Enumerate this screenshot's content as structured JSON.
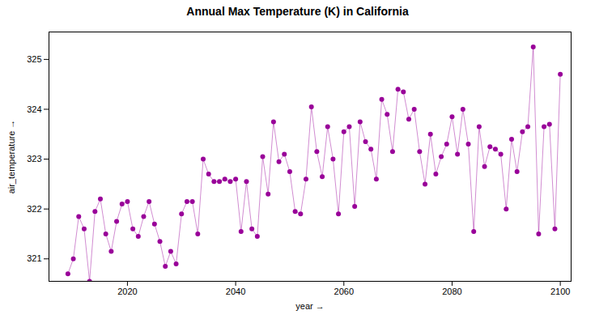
{
  "chart_data": {
    "type": "line",
    "title": "Annual Max Temperature (K) in California",
    "xlabel": "year",
    "ylabel": "air_temperature",
    "color": "#990099",
    "marker": "o",
    "grid": false,
    "x": [
      2009,
      2010,
      2011,
      2012,
      2013,
      2014,
      2015,
      2016,
      2017,
      2018,
      2019,
      2020,
      2021,
      2022,
      2023,
      2024,
      2025,
      2026,
      2027,
      2028,
      2029,
      2030,
      2031,
      2032,
      2033,
      2034,
      2035,
      2036,
      2037,
      2038,
      2039,
      2040,
      2041,
      2042,
      2043,
      2044,
      2045,
      2046,
      2047,
      2048,
      2049,
      2050,
      2051,
      2052,
      2053,
      2054,
      2055,
      2056,
      2057,
      2058,
      2059,
      2060,
      2061,
      2062,
      2063,
      2064,
      2065,
      2066,
      2067,
      2068,
      2069,
      2070,
      2071,
      2072,
      2073,
      2074,
      2075,
      2076,
      2077,
      2078,
      2079,
      2080,
      2081,
      2082,
      2083,
      2084,
      2085,
      2086,
      2087,
      2088,
      2089,
      2090,
      2091,
      2092,
      2093,
      2094,
      2095,
      2096,
      2097,
      2098,
      2099,
      2100
    ],
    "values": [
      320.7,
      321.0,
      321.85,
      321.6,
      320.55,
      321.95,
      322.2,
      321.5,
      321.15,
      321.75,
      322.1,
      322.15,
      321.6,
      321.45,
      321.85,
      322.15,
      321.7,
      321.35,
      320.85,
      321.15,
      320.9,
      321.9,
      322.15,
      322.15,
      321.5,
      323.0,
      322.7,
      322.55,
      322.55,
      322.6,
      322.55,
      322.6,
      321.55,
      322.55,
      321.6,
      321.45,
      323.05,
      322.3,
      323.75,
      322.95,
      323.1,
      322.75,
      321.95,
      321.9,
      322.6,
      324.05,
      323.15,
      322.65,
      323.65,
      323.0,
      321.9,
      323.55,
      323.65,
      322.05,
      323.75,
      323.35,
      323.2,
      322.6,
      324.2,
      323.9,
      323.15,
      324.4,
      324.35,
      323.8,
      324.0,
      323.15,
      322.5,
      323.5,
      322.7,
      323.05,
      323.3,
      323.85,
      323.1,
      324.0,
      323.3,
      321.55,
      323.65,
      322.85,
      323.25,
      323.2,
      323.1,
      322.0,
      323.4,
      322.75,
      323.55,
      323.65,
      325.25,
      321.5,
      323.65,
      323.7,
      321.6,
      324.7
    ],
    "xlim": [
      2005.5,
      2102
    ],
    "ylim": [
      320.55,
      325.55
    ],
    "xticks": [
      2020,
      2040,
      2060,
      2080,
      2100
    ],
    "yticks": [
      321,
      322,
      323,
      324,
      325
    ]
  }
}
